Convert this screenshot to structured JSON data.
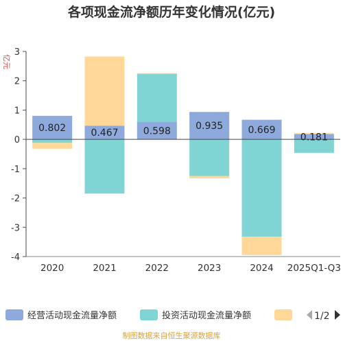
{
  "chart_data": {
    "type": "bar",
    "stacked": true,
    "title": "各项现金流净额历年变化情况(亿元)",
    "ylabel": "亿元",
    "xlabel": "",
    "ylim": [
      -4,
      3
    ],
    "yticks": [
      3,
      2,
      1,
      0,
      -1,
      -2,
      -3,
      -4
    ],
    "grid": false,
    "legend_position": "bottom",
    "categories": [
      "2020",
      "2021",
      "2022",
      "2023",
      "2024",
      "2025Q1-Q3"
    ],
    "series": [
      {
        "name": "经营活动现金流量净额",
        "color": "#8ea9db",
        "values": [
          0.802,
          0.467,
          0.598,
          0.935,
          0.669,
          0.181
        ],
        "labels": [
          "0.802",
          "0.467",
          "0.598",
          "0.935",
          "0.669",
          "0.181"
        ]
      },
      {
        "name": "投资活动现金流量净额",
        "color": "#80d4d4",
        "values": [
          -0.12,
          -1.85,
          1.64,
          -1.25,
          -3.32,
          -0.46
        ]
      },
      {
        "name": "",
        "color": "#ffd899",
        "values": [
          -0.2,
          2.36,
          0.02,
          -0.08,
          -0.63,
          0.03
        ]
      }
    ]
  },
  "legend": {
    "page_indicator": "1/2",
    "prev_icon": "triangle-left-icon",
    "next_icon": "triangle-right-icon"
  },
  "source": "制图数据来自恒生聚源数据库"
}
